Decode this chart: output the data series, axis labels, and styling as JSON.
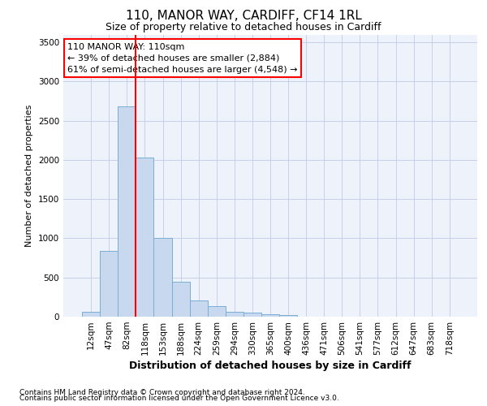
{
  "title1": "110, MANOR WAY, CARDIFF, CF14 1RL",
  "title2": "Size of property relative to detached houses in Cardiff",
  "xlabel": "Distribution of detached houses by size in Cardiff",
  "ylabel": "Number of detached properties",
  "bar_labels": [
    "12sqm",
    "47sqm",
    "82sqm",
    "118sqm",
    "153sqm",
    "188sqm",
    "224sqm",
    "259sqm",
    "294sqm",
    "330sqm",
    "365sqm",
    "400sqm",
    "436sqm",
    "471sqm",
    "506sqm",
    "541sqm",
    "577sqm",
    "612sqm",
    "647sqm",
    "683sqm",
    "718sqm"
  ],
  "bar_values": [
    60,
    840,
    2680,
    2030,
    1000,
    450,
    205,
    135,
    65,
    55,
    30,
    25,
    0,
    0,
    0,
    0,
    0,
    0,
    0,
    0,
    0
  ],
  "bar_color": "#c8d8ee",
  "bar_edge_color": "#7badd4",
  "vline_position": 2.5,
  "vline_color": "red",
  "annotation_line1": "110 MANOR WAY: 110sqm",
  "annotation_line2": "← 39% of detached houses are smaller (2,884)",
  "annotation_line3": "61% of semi-detached houses are larger (4,548) →",
  "annotation_box_color": "white",
  "annotation_box_edge": "red",
  "ylim": [
    0,
    3600
  ],
  "yticks": [
    0,
    500,
    1000,
    1500,
    2000,
    2500,
    3000,
    3500
  ],
  "footer1": "Contains HM Land Registry data © Crown copyright and database right 2024.",
  "footer2": "Contains public sector information licensed under the Open Government Licence v3.0.",
  "bg_color": "#ffffff",
  "plot_bg_color": "#eef2fb",
  "grid_color": "#c8d0e8",
  "title1_fontsize": 11,
  "title2_fontsize": 9,
  "xlabel_fontsize": 9,
  "ylabel_fontsize": 8,
  "tick_fontsize": 7.5,
  "footer_fontsize": 6.5
}
